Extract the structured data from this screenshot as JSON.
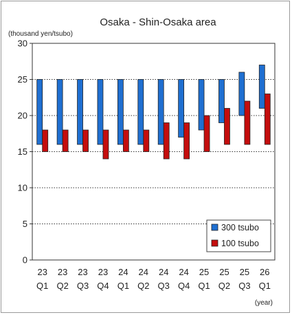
{
  "chart_data": {
    "type": "bar",
    "title": "Osaka - Shin-Osaka area",
    "ylabel": "(thousand yen/tsubo)",
    "xlabel": "(year)",
    "ylim": [
      0,
      30
    ],
    "yticks": [
      0,
      5,
      10,
      15,
      20,
      25,
      30
    ],
    "grid": "horizontal dotted",
    "legend_position": "bottom-right",
    "categories": [
      {
        "year": "23",
        "quarter": "Q1"
      },
      {
        "year": "23",
        "quarter": "Q2"
      },
      {
        "year": "23",
        "quarter": "Q3"
      },
      {
        "year": "23",
        "quarter": "Q4"
      },
      {
        "year": "24",
        "quarter": "Q1"
      },
      {
        "year": "24",
        "quarter": "Q2"
      },
      {
        "year": "24",
        "quarter": "Q3"
      },
      {
        "year": "24",
        "quarter": "Q4"
      },
      {
        "year": "25",
        "quarter": "Q1"
      },
      {
        "year": "25",
        "quarter": "Q2"
      },
      {
        "year": "25",
        "quarter": "Q3"
      },
      {
        "year": "26",
        "quarter": "Q1"
      }
    ],
    "series": [
      {
        "name": "300 tsubo",
        "color": "#1f6fd1",
        "low": [
          16,
          16,
          16,
          16,
          16,
          16,
          16,
          17,
          18,
          19,
          20,
          21
        ],
        "high": [
          25,
          25,
          25,
          25,
          25,
          25,
          25,
          25,
          25,
          25,
          26,
          27
        ]
      },
      {
        "name": "100 tsubo",
        "color": "#c40d0d",
        "low": [
          15,
          15,
          15,
          14,
          15,
          15,
          14,
          14,
          15,
          16,
          16,
          16
        ],
        "high": [
          18,
          18,
          18,
          18,
          18,
          18,
          19,
          19,
          20,
          21,
          22,
          23
        ]
      }
    ]
  }
}
